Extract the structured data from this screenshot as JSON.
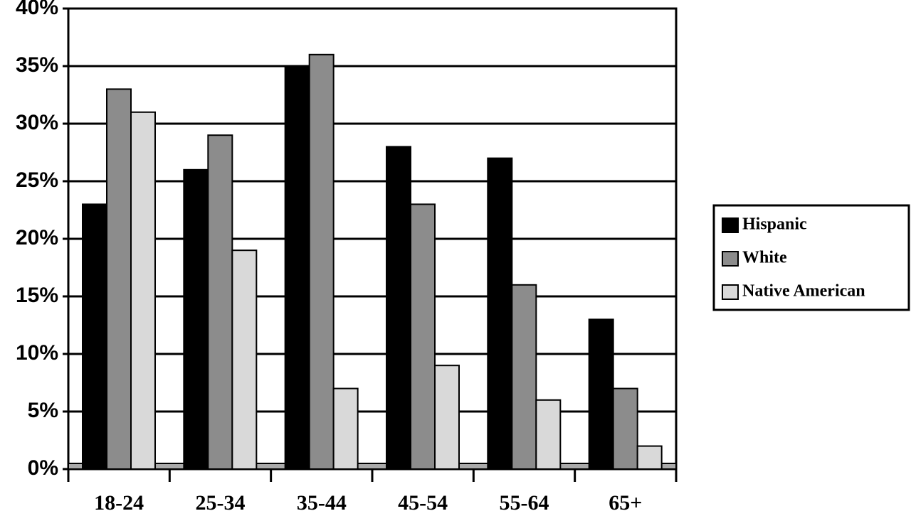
{
  "chart_data": {
    "type": "bar",
    "categories": [
      "18-24",
      "25-34",
      "35-44",
      "45-54",
      "55-64",
      "65+"
    ],
    "series": [
      {
        "name": "Hispanic",
        "color": "#000000",
        "values": [
          23,
          26,
          35,
          28,
          27,
          13
        ]
      },
      {
        "name": "White",
        "color": "#8c8c8c",
        "values": [
          33,
          29,
          36,
          23,
          16,
          7
        ]
      },
      {
        "name": "Native American",
        "color": "#d9d9d9",
        "values": [
          31,
          19,
          7,
          9,
          6,
          2
        ]
      }
    ],
    "ylim": [
      0,
      40
    ],
    "yticks": [
      {
        "value": 0,
        "label": "0%"
      },
      {
        "value": 5,
        "label": "5%"
      },
      {
        "value": 10,
        "label": "10%"
      },
      {
        "value": 15,
        "label": "15%"
      },
      {
        "value": 20,
        "label": "20%"
      },
      {
        "value": 25,
        "label": "25%"
      },
      {
        "value": 30,
        "label": "30%"
      },
      {
        "value": 35,
        "label": "35%"
      },
      {
        "value": 40,
        "label": "40%"
      }
    ],
    "grid": true,
    "legend": "right"
  }
}
